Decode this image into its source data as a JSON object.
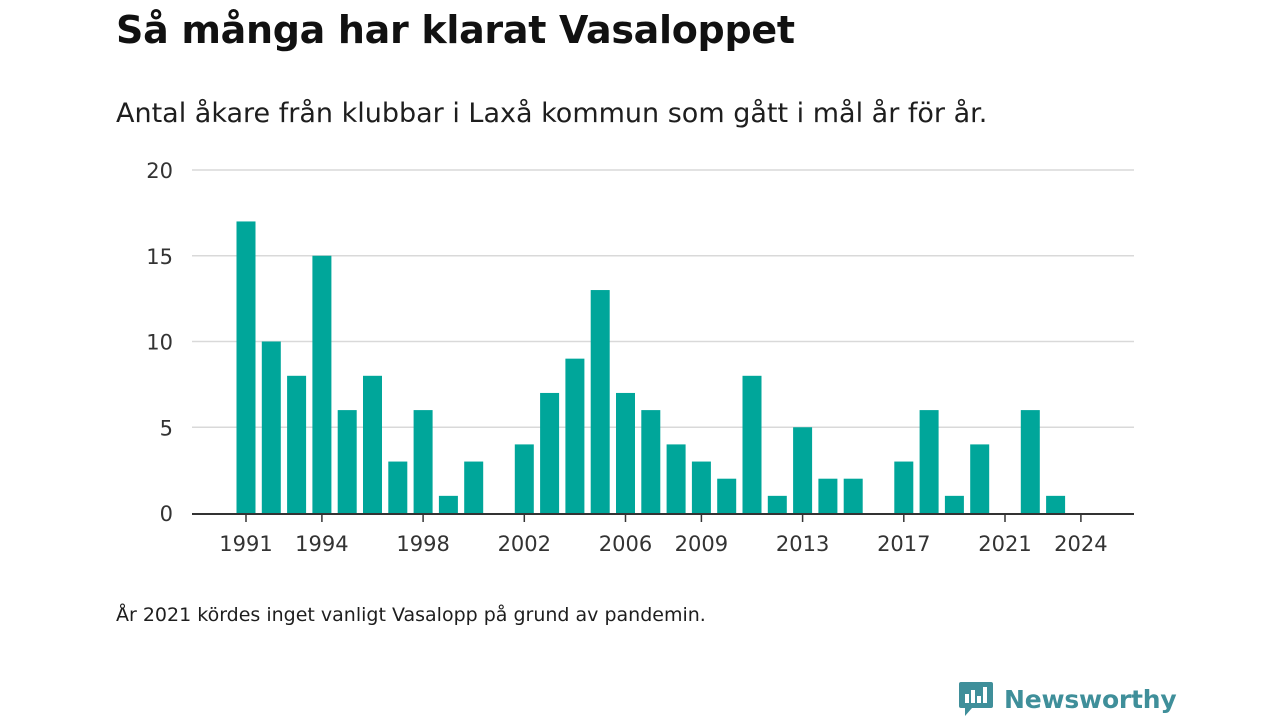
{
  "header": {
    "title": "Så många har klarat Vasaloppet",
    "subtitle": "Antal åkare från klubbar i Laxå kommun som gått i mål år för år."
  },
  "footer": {
    "note": "År 2021 kördes inget vanligt Vasalopp på grund av pandemin.",
    "brand": "Newsworthy"
  },
  "colors": {
    "bar": "#00a69a",
    "grid": "#d9d9d9",
    "axis": "#333333",
    "brand": "#3f8f9a"
  },
  "chart_data": {
    "type": "bar",
    "xlabel": "",
    "ylabel": "",
    "ylim": [
      0,
      20
    ],
    "yticks": [
      0,
      5,
      10,
      15,
      20
    ],
    "xticks": [
      1991,
      1994,
      1998,
      2002,
      2006,
      2009,
      2013,
      2017,
      2021,
      2024
    ],
    "grid": true,
    "x": [
      1991,
      1992,
      1993,
      1994,
      1995,
      1996,
      1997,
      1998,
      1999,
      2000,
      2001,
      2002,
      2003,
      2004,
      2005,
      2006,
      2007,
      2008,
      2009,
      2010,
      2011,
      2012,
      2013,
      2014,
      2015,
      2016,
      2017,
      2018,
      2019,
      2020,
      2021,
      2022,
      2023,
      2024
    ],
    "values": [
      17,
      10,
      8,
      15,
      6,
      8,
      3,
      6,
      1,
      3,
      0,
      4,
      7,
      9,
      13,
      7,
      6,
      4,
      3,
      2,
      8,
      1,
      5,
      2,
      2,
      0,
      3,
      6,
      1,
      4,
      0,
      6,
      1,
      0
    ]
  }
}
